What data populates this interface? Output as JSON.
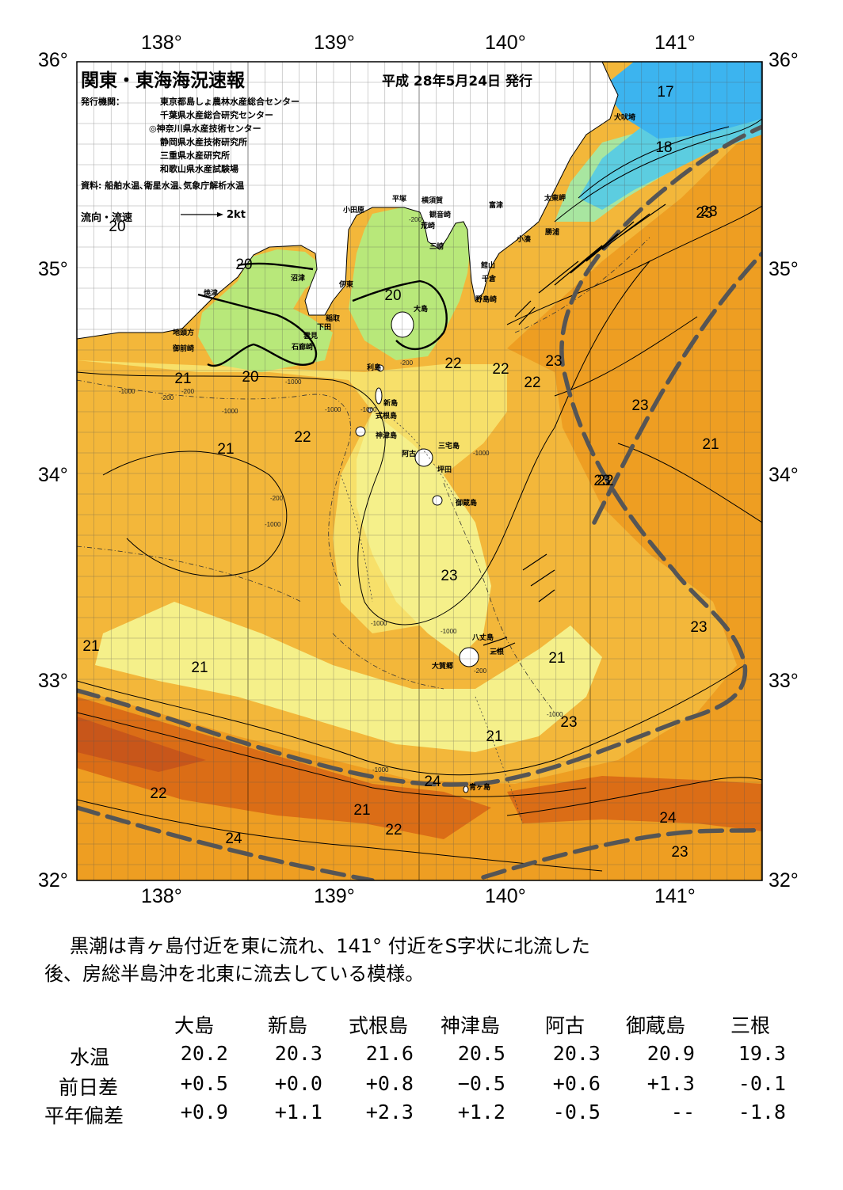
{
  "header": {
    "title": "関東・東海海況速報",
    "issue_date": "平成 28年5月24日 発行",
    "issuer_label": "発行機関：",
    "issuers": [
      "東京都島しょ農林水産総合センター",
      "千葉県水産総合研究センター",
      "◎神奈川県水産技術センター",
      "静岡県水産技術研究所",
      "三重県水産研究所",
      "和歌山県水産試験場"
    ],
    "sources": "資料: 船舶水温､衛星水温､気象庁解析水温",
    "current_legend": "流向・流速",
    "current_scale": "2kt"
  },
  "axes": {
    "lon_top": [
      "138°",
      "139°",
      "140°",
      "141°"
    ],
    "lon_bottom": [
      "138°",
      "139°",
      "140°",
      "141°"
    ],
    "lat_left": [
      "36°",
      "35°",
      "34°",
      "33°",
      "32°"
    ],
    "lat_right": [
      "36°",
      "35°",
      "34°",
      "33°",
      "32°"
    ]
  },
  "places": [
    {
      "name": "犬吠埼"
    },
    {
      "name": "太東岬"
    },
    {
      "name": "勝浦"
    },
    {
      "name": "小湊"
    },
    {
      "name": "富津"
    },
    {
      "name": "横須賀"
    },
    {
      "name": "観音崎"
    },
    {
      "name": "荒崎"
    },
    {
      "name": "三崎"
    },
    {
      "name": "平塚"
    },
    {
      "name": "小田原"
    },
    {
      "name": "館山"
    },
    {
      "name": "千倉"
    },
    {
      "name": "野島崎"
    },
    {
      "name": "沼津"
    },
    {
      "name": "焼津"
    },
    {
      "name": "伊東"
    },
    {
      "name": "稲取"
    },
    {
      "name": "下田"
    },
    {
      "name": "雲見"
    },
    {
      "name": "石廊崎"
    },
    {
      "name": "地頭方"
    },
    {
      "name": "御前崎"
    },
    {
      "name": "大島"
    },
    {
      "name": "利島"
    },
    {
      "name": "新島"
    },
    {
      "name": "式根島"
    },
    {
      "name": "神津島"
    },
    {
      "name": "阿古"
    },
    {
      "name": "三宅島"
    },
    {
      "name": "坪田"
    },
    {
      "name": "御蔵島"
    },
    {
      "name": "八丈島"
    },
    {
      "name": "大賀郷"
    },
    {
      "name": "三根"
    },
    {
      "name": "青ヶ島"
    }
  ],
  "isotherm_labels": [
    "17",
    "18",
    "23",
    "20",
    "20",
    "20",
    "20",
    "21",
    "22",
    "23",
    "22",
    "22",
    "22",
    "23",
    "21",
    "21",
    "22",
    "23",
    "23",
    "21",
    "21",
    "21",
    "23",
    "21",
    "22",
    "21",
    "24",
    "24",
    "22",
    "24",
    "23",
    "23",
    "23"
  ],
  "depth_labels": [
    "-200",
    "-1000",
    "-200",
    "-1000",
    "-200",
    "-1000",
    "-200",
    "-1000",
    "-1000",
    "-200",
    "-1000",
    "-1000",
    "-1000",
    "-1000",
    "-200",
    "-1000",
    "-1000"
  ],
  "colors": {
    "t17": "#3cb4ef",
    "t18": "#5ccde0",
    "t19": "#a8e6a0",
    "t20": "#b8e87a",
    "t21": "#f5f08a",
    "t21b": "#f7e06a",
    "t22": "#f3b73a",
    "t23": "#ee9e22",
    "t24": "#db6d16",
    "t24b": "#c8561a",
    "kuroshio_axis": "#555555"
  },
  "summary": {
    "line1": "黒潮は青ヶ島付近を東に流れ、141° 付近をS字状に北流した",
    "line2": "後、房総半島沖を北東に流去している模様。"
  },
  "table": {
    "columns": [
      "大島",
      "新島",
      "式根島",
      "神津島",
      "阿古",
      "御蔵島",
      "三根"
    ],
    "rows": [
      {
        "label": "水温",
        "values": [
          "20.2",
          "20.3",
          "21.6",
          "20.5",
          "20.3",
          "20.9",
          "19.3"
        ]
      },
      {
        "label": "前日差",
        "values": [
          "+0.5",
          "+0.0",
          "+0.8",
          "−0.5",
          "+0.6",
          "+1.3",
          "-0.1"
        ]
      },
      {
        "label": "平年偏差",
        "values": [
          "+0.9",
          "+1.1",
          "+2.3",
          "+1.2",
          "-0.5",
          "--",
          "-1.8"
        ]
      }
    ]
  }
}
